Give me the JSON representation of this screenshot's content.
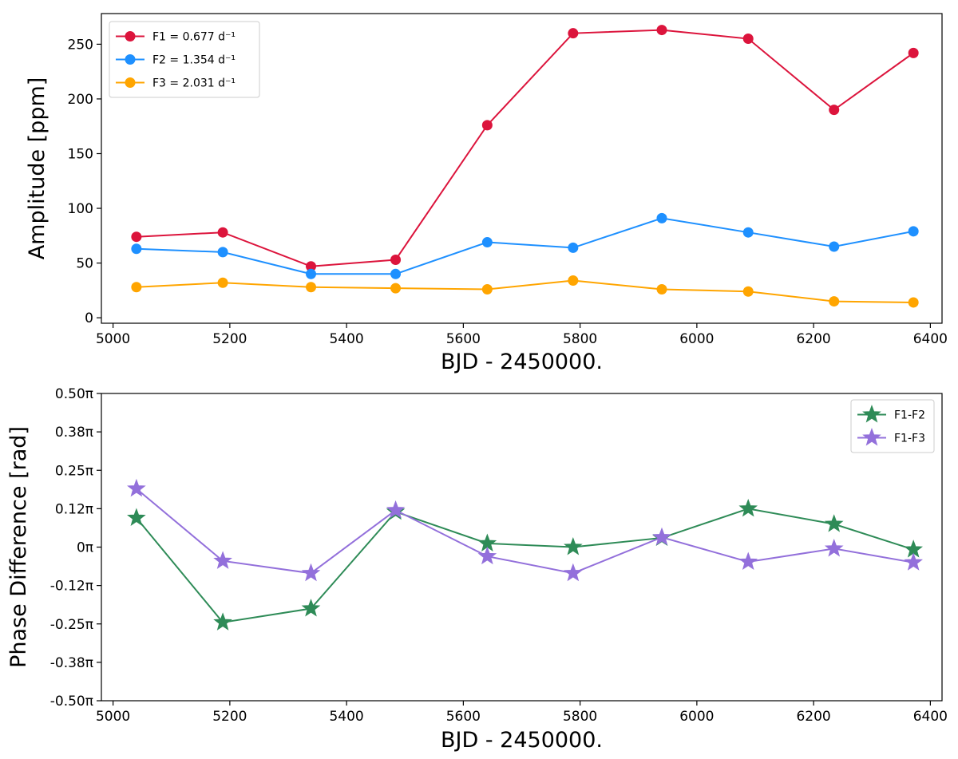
{
  "chart_data": [
    {
      "type": "line",
      "xlabel": "BJD - 2450000.",
      "ylabel": "Amplitude [ppm]",
      "xlim": [
        4980,
        6420
      ],
      "ylim": [
        -5,
        278
      ],
      "x_ticks": [
        5000,
        5200,
        5400,
        5600,
        5800,
        6000,
        6200,
        6400
      ],
      "x_tick_labels": [
        "5000",
        "5200",
        "5400",
        "5600",
        "5800",
        "6000",
        "6200",
        "6400"
      ],
      "y_ticks": [
        0,
        50,
        100,
        150,
        200,
        250
      ],
      "y_tick_labels": [
        "0",
        "50",
        "100",
        "150",
        "200",
        "250"
      ],
      "legend_position": "top-left",
      "x": [
        5040,
        5188,
        5339,
        5484,
        5641,
        5788,
        5940,
        6088,
        6235,
        6371
      ],
      "series": [
        {
          "name": "F1 = 0.677 d⁻¹",
          "color": "#dc143c",
          "marker": "circle",
          "values": [
            74,
            78,
            47,
            53,
            176,
            260,
            263,
            255,
            190,
            242
          ]
        },
        {
          "name": "F2 = 1.354 d⁻¹",
          "color": "#1e90ff",
          "marker": "circle",
          "values": [
            63,
            60,
            40,
            40,
            69,
            64,
            91,
            78,
            65,
            79
          ]
        },
        {
          "name": "F3 = 2.031 d⁻¹",
          "color": "#ffa500",
          "marker": "circle",
          "values": [
            28,
            32,
            28,
            27,
            26,
            34,
            26,
            24,
            15,
            14
          ]
        }
      ]
    },
    {
      "type": "line",
      "xlabel": "BJD - 2450000.",
      "ylabel": "Phase Difference [rad]",
      "xlim": [
        4980,
        6420
      ],
      "ylim": [
        -0.5,
        0.5
      ],
      "x_ticks": [
        5000,
        5200,
        5400,
        5600,
        5800,
        6000,
        6200,
        6400
      ],
      "x_tick_labels": [
        "5000",
        "5200",
        "5400",
        "5600",
        "5800",
        "6000",
        "6200",
        "6400"
      ],
      "y_ticks": [
        0.5,
        0.375,
        0.25,
        0.125,
        0,
        -0.125,
        -0.25,
        -0.375,
        -0.5
      ],
      "y_tick_labels": [
        "0.50π",
        "0.38π",
        "0.25π",
        "0.12π",
        "0π",
        "-0.12π",
        "-0.25π",
        "-0.38π",
        "-0.50π"
      ],
      "y_unit": "π rad",
      "legend_position": "top-right",
      "x": [
        5040,
        5188,
        5339,
        5484,
        5641,
        5788,
        5940,
        6088,
        6235,
        6371
      ],
      "series": [
        {
          "name": "F1-F2",
          "color": "#2e8b57",
          "marker": "star",
          "values": [
            0.095,
            -0.245,
            -0.2,
            0.115,
            0.012,
            0.0,
            0.03,
            0.125,
            0.075,
            -0.008
          ]
        },
        {
          "name": "F1-F3",
          "color": "#9370db",
          "marker": "star",
          "values": [
            0.19,
            -0.045,
            -0.085,
            0.12,
            -0.03,
            -0.085,
            0.032,
            -0.048,
            -0.005,
            -0.05
          ]
        }
      ]
    }
  ]
}
